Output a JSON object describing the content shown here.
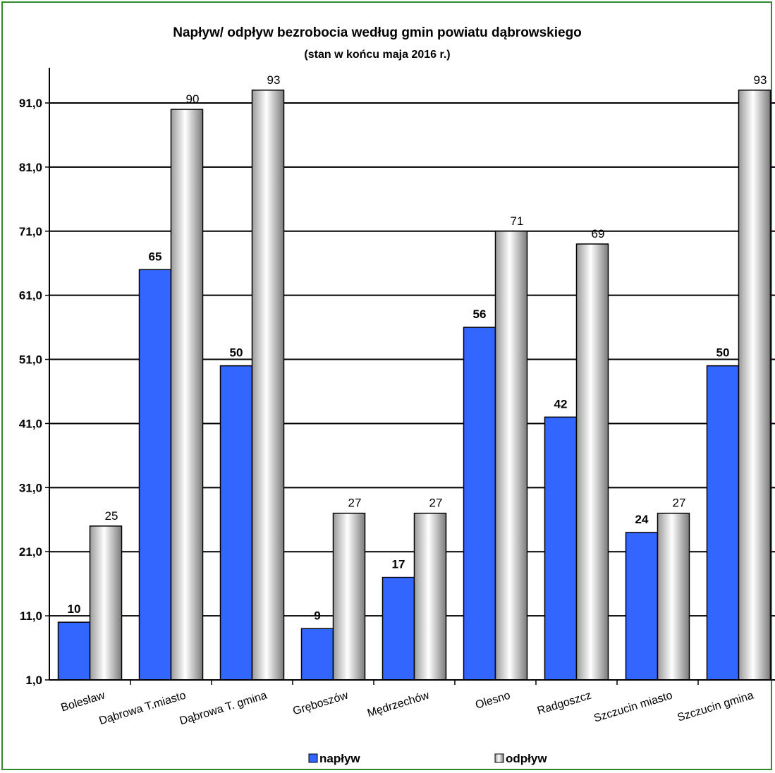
{
  "chart_data": {
    "type": "bar",
    "title": "Napływ/ odpływ bezrobocia według gmin powiatu dąbrowskiego",
    "subtitle": "(stan w końcu maja 2016 r.)",
    "categories": [
      "Bolesław",
      "Dąbrowa T.miasto",
      "Dąbrowa T. gmina",
      "Gręboszów",
      "Mędrzechów",
      "Olesno",
      "Radgoszcz",
      "Szczucin miasto",
      "Szczucin gmina"
    ],
    "series": [
      {
        "name": "napływ",
        "values": [
          10,
          65,
          50,
          9,
          17,
          56,
          42,
          24,
          50
        ],
        "color": "#3366ff"
      },
      {
        "name": "odpływ",
        "values": [
          25,
          90,
          93,
          27,
          27,
          71,
          69,
          27,
          93
        ],
        "color": "#d9d9d9"
      }
    ],
    "yticks": [
      "1,0",
      "11,0",
      "21,0",
      "31,0",
      "41,0",
      "51,0",
      "61,0",
      "71,0",
      "81,0",
      "91,0"
    ],
    "ylim": [
      1,
      96.5
    ],
    "grid": true,
    "legend": "bottom",
    "colors": {
      "frame": "#2e8b2e",
      "inflow": "#3366ff",
      "outflow_light": "#ffffff",
      "outflow_dark": "#808080"
    }
  }
}
